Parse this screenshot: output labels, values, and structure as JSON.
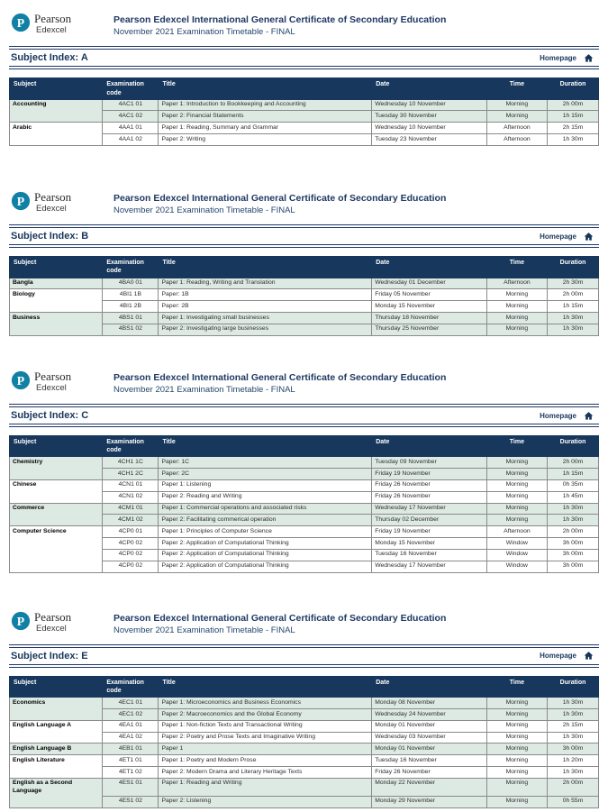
{
  "brand": {
    "logo_name": "Pearson",
    "logo_sub": "Edexcel",
    "title": "Pearson Edexcel International General Certificate of Secondary Education",
    "subtitle": "November 2021 Examination Timetable - FINAL"
  },
  "nav": {
    "homepage_label": "Homepage",
    "home_icon": "home-icon"
  },
  "colors": {
    "navy_accent": "#1f3864",
    "table_header_bg": "#17375c",
    "row_tint": "#dde9e3",
    "logo_teal": "#1180a5"
  },
  "table_headers": {
    "subject": "Subject",
    "code": "Examination code",
    "title": "Title",
    "date": "Date",
    "time": "Time",
    "duration": "Duration"
  },
  "sections": [
    {
      "index_label": "Subject Index: A",
      "groups": [
        {
          "subject": "Accounting",
          "tinted": true,
          "rows": [
            {
              "code": "4AC1 01",
              "title": "Paper 1: Introduction to Bookkeeping and Accounting",
              "date": "Wednesday 10 November",
              "time": "Morning",
              "duration": "2h 00m"
            },
            {
              "code": "4AC1 02",
              "title": "Paper 2: Financial Statements",
              "date": "Tuesday 30 November",
              "time": "Morning",
              "duration": "1h 15m"
            }
          ]
        },
        {
          "subject": "Arabic",
          "tinted": false,
          "rows": [
            {
              "code": "4AA1 01",
              "title": "Paper 1: Reading, Summary and Grammar",
              "date": "Wednesday 10 November",
              "time": "Afternoon",
              "duration": "2h 15m"
            },
            {
              "code": "4AA1 02",
              "title": "Paper 2: Writing",
              "date": "Tuesday 23 November",
              "time": "Afternoon",
              "duration": "1h 30m"
            }
          ]
        }
      ]
    },
    {
      "index_label": "Subject Index: B",
      "groups": [
        {
          "subject": "Bangla",
          "tinted": true,
          "rows": [
            {
              "code": "4BA0 01",
              "title": "Paper 1: Reading, Writing and Translation",
              "date": "Wednesday 01 December",
              "time": "Afternoon",
              "duration": "2h 30m"
            }
          ]
        },
        {
          "subject": "Biology",
          "tinted": false,
          "rows": [
            {
              "code": "4BI1 1B",
              "title": "Paper: 1B",
              "date": "Friday 05 November",
              "time": "Morning",
              "duration": "2h 00m"
            },
            {
              "code": "4BI1 2B",
              "title": "Paper: 2B",
              "date": "Monday 15 November",
              "time": "Morning",
              "duration": "1h 15m"
            }
          ]
        },
        {
          "subject": "Business",
          "tinted": true,
          "rows": [
            {
              "code": "4BS1 01",
              "title": "Paper 1: Investigating small businesses",
              "date": "Thursday 18 November",
              "time": "Morning",
              "duration": "1h 30m"
            },
            {
              "code": "4BS1 02",
              "title": "Paper 2: Investigating large businesses",
              "date": "Thursday 25 November",
              "time": "Morning",
              "duration": "1h 30m"
            }
          ]
        }
      ]
    },
    {
      "index_label": "Subject Index: C",
      "groups": [
        {
          "subject": "Chemistry",
          "tinted": true,
          "rows": [
            {
              "code": "4CH1 1C",
              "title": "Paper: 1C",
              "date": "Tuesday 09 November",
              "time": "Morning",
              "duration": "2h 00m"
            },
            {
              "code": "4CH1 2C",
              "title": "Paper: 2C",
              "date": "Friday 19 November",
              "time": "Morning",
              "duration": "1h 15m"
            }
          ]
        },
        {
          "subject": "Chinese",
          "tinted": false,
          "rows": [
            {
              "code": "4CN1 01",
              "title": "Paper 1: Listening",
              "date": "Friday 26 November",
              "time": "Morning",
              "duration": "0h 35m"
            },
            {
              "code": "4CN1 02",
              "title": "Paper 2: Reading and Writing",
              "date": "Friday 26 November",
              "time": "Morning",
              "duration": "1h 45m"
            }
          ]
        },
        {
          "subject": "Commerce",
          "tinted": true,
          "rows": [
            {
              "code": "4CM1 01",
              "title": "Paper 1: Commercial operations and associated risks",
              "date": "Wednesday 17 November",
              "time": "Morning",
              "duration": "1h 30m"
            },
            {
              "code": "4CM1 02",
              "title": "Paper 2: Facilitating commerical operation",
              "date": "Thursday 02 December",
              "time": "Morning",
              "duration": "1h 30m"
            }
          ]
        },
        {
          "subject": "Computer Science",
          "tinted": false,
          "rows": [
            {
              "code": "4CP0 01",
              "title": "Paper 1: Principles of Computer Science",
              "date": "Friday 19 November",
              "time": "Afternoon",
              "duration": "2h 00m"
            },
            {
              "code": "4CP0 02",
              "title": "Paper 2: Application of Computational Thinking",
              "date": "Monday 15 November",
              "time": "Window",
              "duration": "3h 00m"
            },
            {
              "code": "4CP0 02",
              "title": "Paper 2: Application of Computational Thinking",
              "date": "Tuesday 16 November",
              "time": "Window",
              "duration": "3h 00m"
            },
            {
              "code": "4CP0 02",
              "title": "Paper 2: Application of Computational Thinking",
              "date": "Wednesday 17 November",
              "time": "Window",
              "duration": "3h 00m"
            }
          ]
        }
      ]
    },
    {
      "index_label": "Subject Index: E",
      "groups": [
        {
          "subject": "Economics",
          "tinted": true,
          "rows": [
            {
              "code": "4EC1 01",
              "title": "Paper 1: Microeconomics and Business Economics",
              "date": "Monday 08 November",
              "time": "Morning",
              "duration": "1h 30m"
            },
            {
              "code": "4EC1 02",
              "title": "Paper 2: Macroeconomics and the Global Economy",
              "date": "Wednesday 24 November",
              "time": "Morning",
              "duration": "1h 30m"
            }
          ]
        },
        {
          "subject": "English Language A",
          "tinted": false,
          "rows": [
            {
              "code": "4EA1 01",
              "title": "Paper 1: Non-fiction Texts and Transactional Writing",
              "date": "Monday 01 November",
              "time": "Morning",
              "duration": "2h 15m"
            },
            {
              "code": "4EA1 02",
              "title": "Paper 2: Poetry and Prose Texts and Imaginative Writing",
              "date": "Wednesday 03 November",
              "time": "Morning",
              "duration": "1h 30m"
            }
          ]
        },
        {
          "subject": "English Language B",
          "tinted": true,
          "rows": [
            {
              "code": "4EB1 01",
              "title": "Paper 1",
              "date": "Monday 01 November",
              "time": "Morning",
              "duration": "3h 00m"
            }
          ]
        },
        {
          "subject": "English Literature",
          "tinted": false,
          "rows": [
            {
              "code": "4ET1 01",
              "title": "Paper 1: Poetry and Modern Prose",
              "date": "Tuesday 16 November",
              "time": "Morning",
              "duration": "1h 20m"
            },
            {
              "code": "4ET1 02",
              "title": "Paper 2: Modern Drama and Literary Heritage Texts",
              "date": "Friday 26 November",
              "time": "Morning",
              "duration": "1h 30m"
            }
          ]
        },
        {
          "subject": "English as a Second Language",
          "tinted": true,
          "rows": [
            {
              "code": "4ES1 01",
              "title": "Paper 1: Reading and Writing",
              "date": "Monday 22 November",
              "time": "Morning",
              "duration": "2h 00m",
              "tall": true
            },
            {
              "code": "4ES1 02",
              "title": "Paper 2: Listening",
              "date": "Monday 29 November",
              "time": "Morning",
              "duration": "0h 55m"
            }
          ]
        }
      ]
    }
  ]
}
